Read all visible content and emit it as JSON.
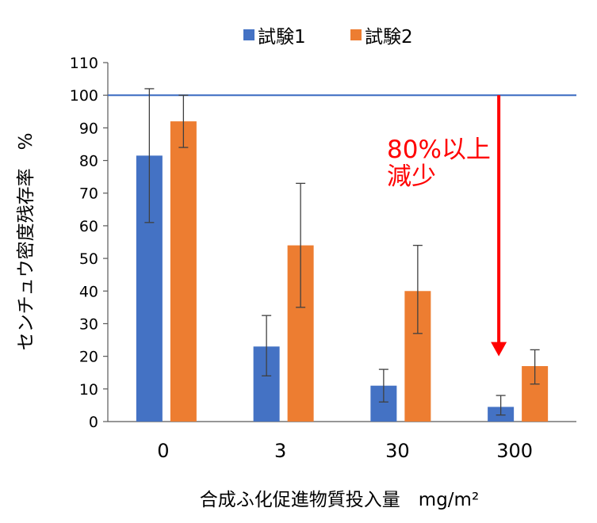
{
  "chart_data": {
    "type": "bar",
    "categories": [
      "0",
      "3",
      "30",
      "300"
    ],
    "series": [
      {
        "name": "試験1",
        "color": "#4472C4",
        "values": [
          81.5,
          23,
          11,
          4.5
        ],
        "error_low": [
          61,
          14,
          6,
          2
        ],
        "error_high": [
          102,
          32.5,
          16,
          8
        ]
      },
      {
        "name": "試験2",
        "color": "#ED7D31",
        "values": [
          92,
          54,
          40,
          17
        ],
        "error_low": [
          84,
          35,
          27,
          11.5
        ],
        "error_high": [
          100,
          73,
          54,
          22
        ]
      }
    ],
    "ylim": [
      0,
      110
    ],
    "yticks": [
      "0",
      "10",
      "20",
      "30",
      "40",
      "50",
      "60",
      "70",
      "80",
      "90",
      "100",
      "110"
    ],
    "ylabel": "センチュウ密度残存率　%",
    "xlabel": "合成ふ化促進物質投入量　mg/m²",
    "reference_line": {
      "value": 100,
      "color": "#4472C4"
    },
    "annotation": {
      "lines": [
        "80%以上",
        "減少"
      ],
      "arrow_from": 100,
      "arrow_to": 20,
      "category": "300",
      "color": "#FF0000"
    },
    "legend_position": "top"
  }
}
